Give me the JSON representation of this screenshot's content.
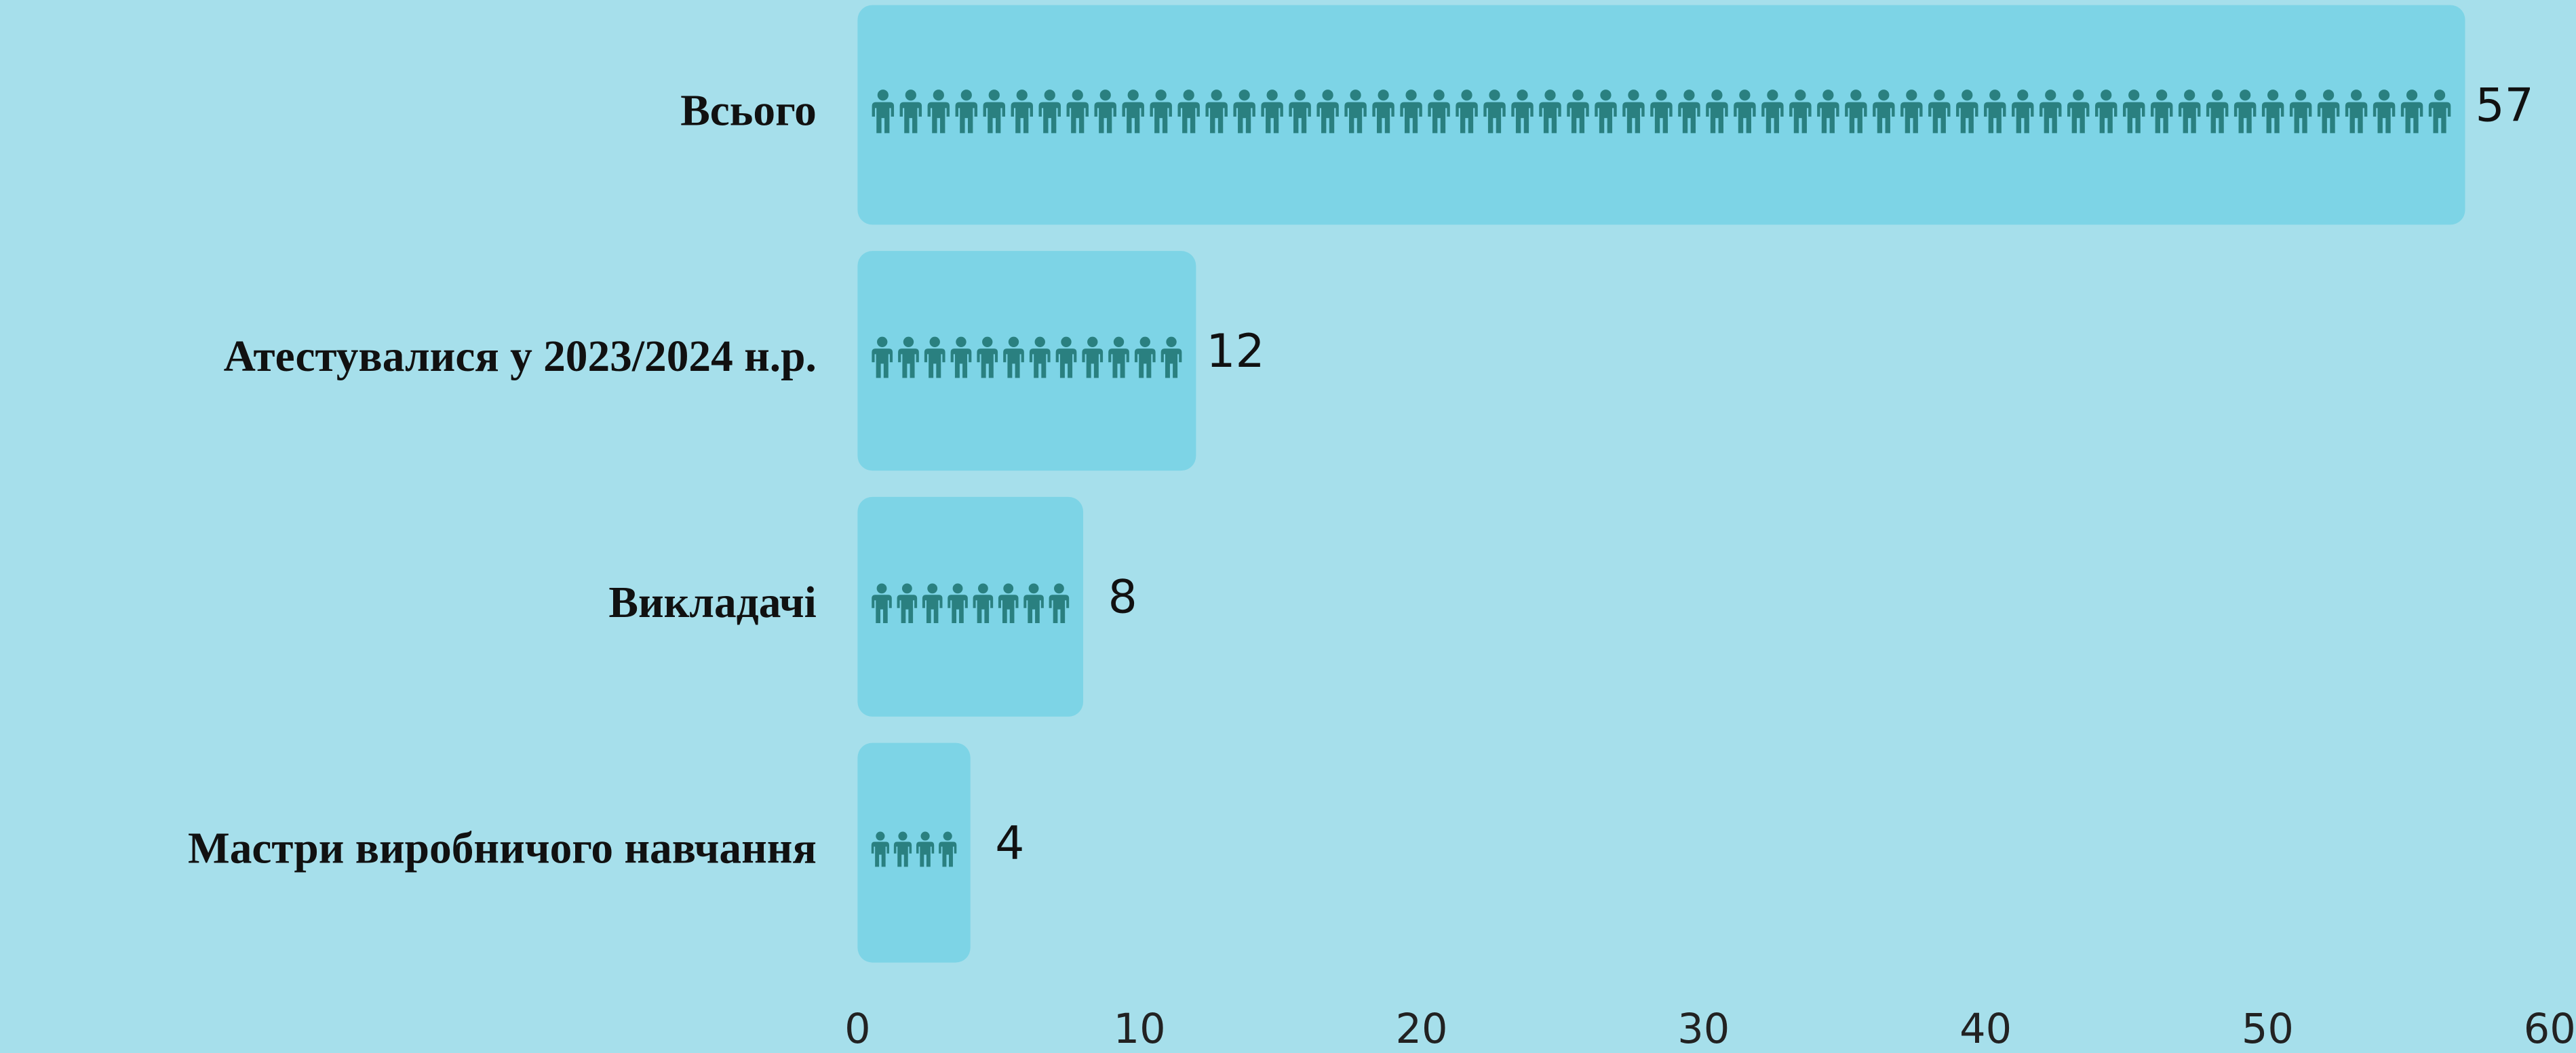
{
  "chart_data": {
    "type": "bar",
    "orientation": "horizontal",
    "categories": [
      "Всього",
      "Атестувалися у 2023/2024 н.р.",
      "Викладачі",
      "Мастри виробничого навчання"
    ],
    "values": [
      57,
      12,
      8,
      4
    ],
    "color": "#7dd4e6",
    "icon_color": "#2a8080",
    "xlim": [
      0,
      60
    ],
    "xticks": [
      0,
      10,
      20,
      30,
      40,
      50,
      60
    ],
    "grid": false
  }
}
